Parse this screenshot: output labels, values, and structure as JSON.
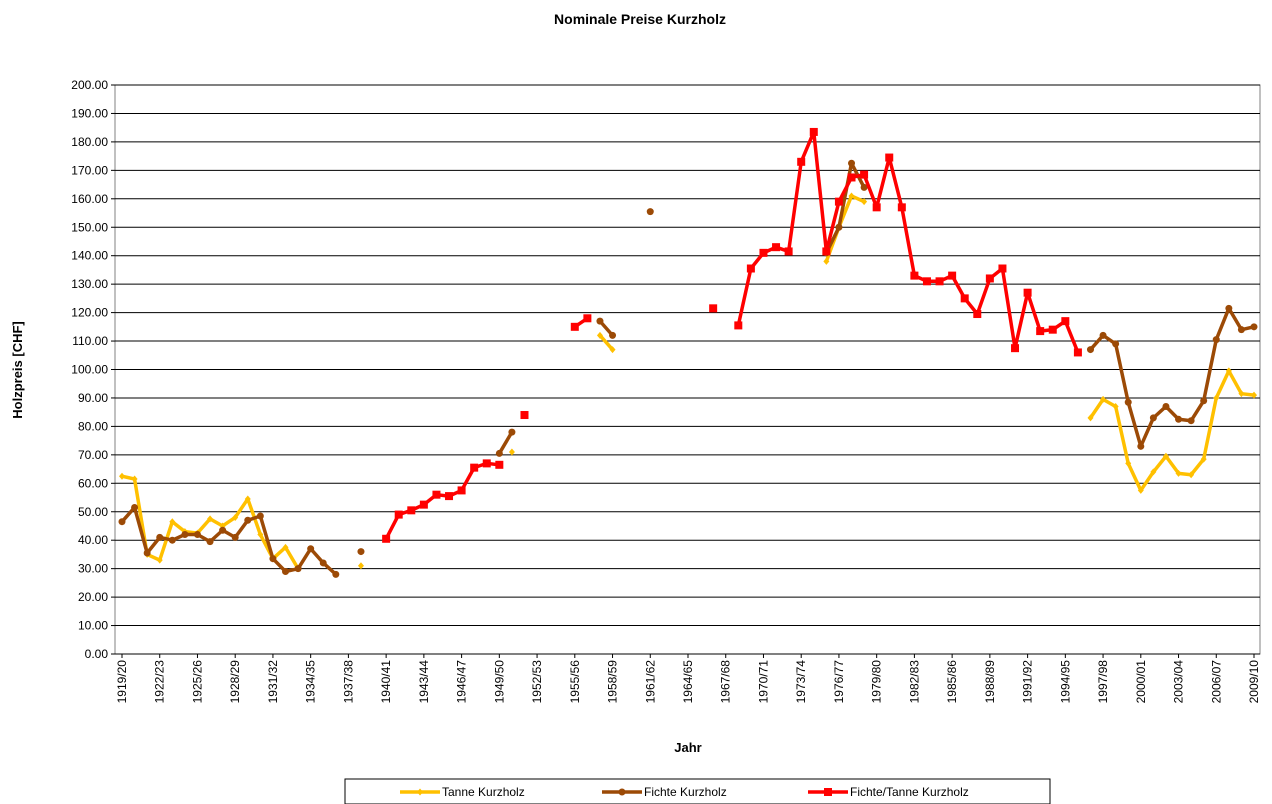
{
  "chart_data": {
    "type": "line",
    "title": "Nominale Preise Kurzholz",
    "x_label": "Jahr",
    "y_label": "Holzpreis [CHF]",
    "categories": [
      "1919/20",
      null,
      null,
      "1922/23",
      null,
      null,
      "1925/26",
      null,
      null,
      "1928/29",
      null,
      null,
      "1931/32",
      null,
      null,
      "1934/35",
      null,
      null,
      "1937/38",
      null,
      null,
      "1940/41",
      null,
      null,
      "1943/44",
      null,
      null,
      "1946/47",
      null,
      null,
      "1949/50",
      null,
      null,
      "1952/53",
      null,
      null,
      "1955/56",
      null,
      null,
      "1958/59",
      null,
      null,
      "1961/62",
      null,
      null,
      "1964/65",
      null,
      null,
      "1967/68",
      null,
      null,
      "1970/71",
      null,
      null,
      "1973/74",
      null,
      null,
      "1976/77",
      null,
      null,
      "1979/80",
      null,
      null,
      "1982/83",
      null,
      null,
      "1985/86",
      null,
      null,
      "1988/89",
      null,
      null,
      "1991/92",
      null,
      null,
      "1994/95",
      null,
      null,
      "1997/98",
      null,
      null,
      "2000/01",
      null,
      null,
      "2003/04",
      null,
      null,
      "2006/07",
      null,
      null,
      "2009/10"
    ],
    "series": [
      {
        "name": "Tanne Kurzholz",
        "color": "#ffc000",
        "marker": "diamond",
        "values": [
          62.5,
          61.5,
          35,
          33,
          46.5,
          43,
          42.5,
          47.5,
          45,
          48,
          54.5,
          42,
          33.5,
          37.5,
          30,
          null,
          null,
          null,
          null,
          31,
          null,
          null,
          null,
          null,
          null,
          null,
          null,
          null,
          null,
          null,
          null,
          71,
          null,
          null,
          null,
          null,
          null,
          null,
          112,
          107,
          null,
          null,
          null,
          null,
          null,
          null,
          null,
          null,
          null,
          null,
          null,
          null,
          null,
          null,
          null,
          null,
          138,
          150,
          161,
          159,
          null,
          null,
          null,
          null,
          null,
          null,
          null,
          null,
          null,
          null,
          null,
          null,
          null,
          null,
          null,
          null,
          null,
          83,
          89.5,
          87,
          67,
          57.5,
          64,
          69.5,
          63.5,
          63,
          68.5,
          90,
          99.5,
          91.5,
          91
        ]
      },
      {
        "name": "Fichte Kurzholz",
        "color": "#9c4a06",
        "marker": "circle",
        "values": [
          46.5,
          51.5,
          35.5,
          41,
          40,
          42,
          42,
          39.5,
          43.5,
          41,
          47,
          48.5,
          33.5,
          29,
          30,
          37,
          32,
          28,
          null,
          36,
          null,
          null,
          null,
          null,
          null,
          null,
          null,
          null,
          null,
          null,
          70.5,
          78,
          null,
          null,
          null,
          null,
          null,
          null,
          117,
          112,
          null,
          null,
          155.5,
          null,
          null,
          null,
          null,
          null,
          null,
          null,
          null,
          null,
          null,
          null,
          null,
          null,
          141,
          150,
          172.5,
          164,
          null,
          null,
          null,
          null,
          null,
          null,
          null,
          null,
          null,
          null,
          null,
          null,
          null,
          null,
          null,
          null,
          null,
          107,
          112,
          109,
          88.5,
          73,
          83,
          87,
          82.5,
          82,
          89,
          110.5,
          121.5,
          114,
          115
        ]
      },
      {
        "name": "Fichte/Tanne Kurzholz",
        "color": "#ff0000",
        "marker": "square",
        "values": [
          null,
          null,
          null,
          null,
          null,
          null,
          null,
          null,
          null,
          null,
          null,
          null,
          null,
          null,
          null,
          null,
          null,
          null,
          null,
          null,
          null,
          40.5,
          49,
          50.5,
          52.5,
          56,
          55.5,
          57.5,
          65.5,
          67,
          66.5,
          null,
          84,
          null,
          null,
          null,
          115,
          118,
          null,
          null,
          null,
          null,
          null,
          null,
          null,
          null,
          null,
          121.5,
          null,
          115.5,
          135.5,
          141,
          143,
          141.5,
          173,
          183.5,
          141.5,
          159,
          167.5,
          168.5,
          157,
          174.5,
          157,
          133,
          131,
          131,
          133,
          125,
          119.5,
          132,
          135.5,
          107.5,
          127,
          113.5,
          114,
          117,
          106,
          null,
          null,
          null,
          null,
          null,
          null,
          null,
          null,
          null,
          null,
          null,
          null,
          null,
          null
        ]
      }
    ],
    "ylim": [
      0,
      200
    ],
    "yticks": [
      {
        "value": 0,
        "label": "0.00"
      },
      {
        "value": 10,
        "label": "10.00"
      },
      {
        "value": 20,
        "label": "20.00"
      },
      {
        "value": 30,
        "label": "30.00"
      },
      {
        "value": 40,
        "label": "40.00"
      },
      {
        "value": 50,
        "label": "50.00"
      },
      {
        "value": 60,
        "label": "60.00"
      },
      {
        "value": 70,
        "label": "70.00"
      },
      {
        "value": 80,
        "label": "80.00"
      },
      {
        "value": 90,
        "label": "90.00"
      },
      {
        "value": 100,
        "label": "100.00"
      },
      {
        "value": 110,
        "label": "110.00"
      },
      {
        "value": 120,
        "label": "120.00"
      },
      {
        "value": 130,
        "label": "130.00"
      },
      {
        "value": 140,
        "label": "140.00"
      },
      {
        "value": 150,
        "label": "150.00"
      },
      {
        "value": 160,
        "label": "160.00"
      },
      {
        "value": 170,
        "label": "170.00"
      },
      {
        "value": 180,
        "label": "180.00"
      },
      {
        "value": 190,
        "label": "190.00"
      },
      {
        "value": 200,
        "label": "200.00"
      }
    ],
    "grid": true,
    "legend": "bottom"
  }
}
